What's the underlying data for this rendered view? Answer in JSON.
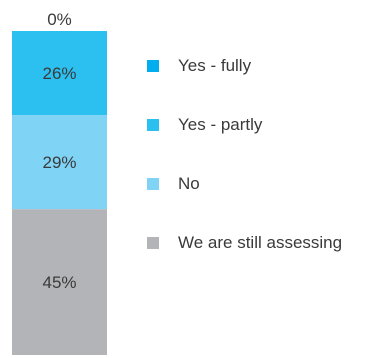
{
  "chart_data": {
    "type": "bar",
    "stacked": true,
    "categories": [
      ""
    ],
    "series": [
      {
        "name": "Yes - fully",
        "value": 0,
        "label": "0%",
        "color": "#00AEEF"
      },
      {
        "name": "Yes - partly",
        "value": 26,
        "label": "26%",
        "color": "#2CC0F0"
      },
      {
        "name": "No",
        "value": 29,
        "label": "29%",
        "color": "#7FD3F5"
      },
      {
        "name": "We are still assessing",
        "value": 45,
        "label": "45%",
        "color": "#B3B4B8"
      }
    ],
    "ylim": [
      0,
      100
    ],
    "legend_position": "right"
  }
}
